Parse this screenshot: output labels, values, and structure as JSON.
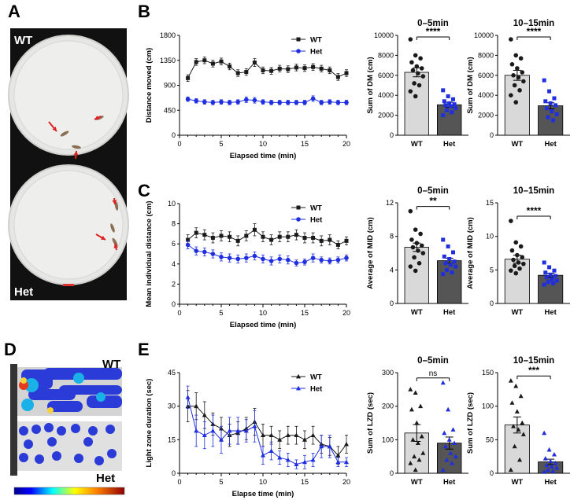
{
  "panels": {
    "A": "A",
    "B": "B",
    "C": "C",
    "D": "D",
    "E": "E"
  },
  "photo": {
    "label_top": "WT",
    "label_bottom": "Het"
  },
  "heatmap": {
    "label_top": "WT",
    "label_bottom": "Het"
  },
  "colors": {
    "wt": "#1a1a1a",
    "het": "#1f2ee0",
    "bar_wt": "#d9d9d9",
    "bar_het": "#555555"
  },
  "chart_data": [
    {
      "id": "B-line",
      "type": "line",
      "xlabel": "Elapsed time (min)",
      "ylabel": "Distance moved (cm)",
      "xlim": [
        0,
        20
      ],
      "ylim": [
        0,
        1800
      ],
      "xticks": [
        0,
        5,
        10,
        15,
        20
      ],
      "yticks": [
        0,
        450,
        900,
        1350,
        1800
      ],
      "yticklabels": [
        "0",
        "450",
        "900",
        "1350",
        "1800"
      ],
      "legend": "top-right",
      "x": [
        1,
        2,
        3,
        4,
        5,
        6,
        7,
        8,
        9,
        10,
        11,
        12,
        13,
        14,
        15,
        16,
        17,
        18,
        19,
        20
      ],
      "series": [
        {
          "name": "WT",
          "color": "#1a1a1a",
          "marker": "square",
          "values": [
            1030,
            1320,
            1350,
            1290,
            1330,
            1240,
            1120,
            1140,
            1310,
            1170,
            1160,
            1200,
            1190,
            1220,
            1210,
            1230,
            1200,
            1170,
            1050,
            1120
          ],
          "err": [
            60,
            60,
            60,
            60,
            60,
            60,
            60,
            60,
            70,
            60,
            60,
            60,
            60,
            60,
            60,
            60,
            60,
            60,
            60,
            60
          ]
        },
        {
          "name": "Het",
          "color": "#1f2ee0",
          "marker": "circle",
          "values": [
            650,
            620,
            600,
            590,
            600,
            590,
            600,
            640,
            630,
            600,
            590,
            590,
            590,
            590,
            590,
            660,
            590,
            600,
            590,
            590
          ],
          "err": [
            40,
            40,
            40,
            40,
            40,
            40,
            40,
            50,
            50,
            40,
            40,
            40,
            40,
            40,
            40,
            50,
            40,
            40,
            40,
            40
          ]
        }
      ]
    },
    {
      "id": "B-bar1",
      "type": "bar",
      "title": "0–5min",
      "ylabel": "Sum of DM (cm)",
      "ylim": [
        0,
        10000
      ],
      "yticks": [
        0,
        2000,
        4000,
        6000,
        8000,
        10000
      ],
      "categories": [
        "WT",
        "Het"
      ],
      "values": [
        6300,
        3050
      ],
      "err": [
        450,
        250
      ],
      "points": [
        [
          9600,
          8000,
          7700,
          7300,
          6900,
          6700,
          6500,
          6200,
          5900,
          5200,
          5000,
          4400,
          3900
        ],
        [
          4500,
          3900,
          3600,
          3400,
          3200,
          3100,
          3000,
          2900,
          2700,
          2500,
          2300,
          2000
        ]
      ],
      "significance": "****"
    },
    {
      "id": "B-bar2",
      "type": "bar",
      "title": "10–15min",
      "ylabel": "Sum of DM (cm)",
      "ylim": [
        0,
        10000
      ],
      "yticks": [
        0,
        2000,
        4000,
        6000,
        8000,
        10000
      ],
      "categories": [
        "WT",
        "Het"
      ],
      "values": [
        6000,
        2950
      ],
      "err": [
        500,
        300
      ],
      "points": [
        [
          9600,
          8000,
          7700,
          7100,
          6700,
          6300,
          6000,
          5800,
          5400,
          5000,
          4500,
          4000,
          3300
        ],
        [
          5500,
          4400,
          3700,
          3400,
          3200,
          3000,
          2700,
          2400,
          2100,
          1800,
          1500
        ]
      ],
      "significance": "****"
    },
    {
      "id": "C-line",
      "type": "line",
      "xlabel": "Elapsed time (min)",
      "ylabel": "Mean individual distance (cm)",
      "xlim": [
        0,
        20
      ],
      "ylim": [
        0,
        10
      ],
      "xticks": [
        0,
        5,
        10,
        15,
        20
      ],
      "yticks": [
        0,
        2,
        4,
        6,
        8,
        10
      ],
      "yticklabels": [
        "0",
        "2",
        "4",
        "6",
        "8",
        "10"
      ],
      "legend": "top-right",
      "x": [
        1,
        2,
        3,
        4,
        5,
        6,
        7,
        8,
        9,
        10,
        11,
        12,
        13,
        14,
        15,
        16,
        17,
        18,
        19,
        20
      ],
      "series": [
        {
          "name": "WT",
          "color": "#1a1a1a",
          "marker": "square",
          "values": [
            6.4,
            7.1,
            6.9,
            6.6,
            6.8,
            6.7,
            6.3,
            6.8,
            7.4,
            6.7,
            6.4,
            6.7,
            6.7,
            6.9,
            6.6,
            6.6,
            6.3,
            6.4,
            5.9,
            6.3
          ],
          "err": [
            0.5,
            0.5,
            0.5,
            0.5,
            0.5,
            0.5,
            0.5,
            0.5,
            0.6,
            0.5,
            0.5,
            0.5,
            0.5,
            0.5,
            0.5,
            0.5,
            0.5,
            0.5,
            0.4,
            0.4
          ]
        },
        {
          "name": "Het",
          "color": "#1f2ee0",
          "marker": "circle",
          "values": [
            5.9,
            5.3,
            5.2,
            5.0,
            4.7,
            4.6,
            4.5,
            4.6,
            4.8,
            4.5,
            4.3,
            4.5,
            4.4,
            4.1,
            4.2,
            4.6,
            4.4,
            4.3,
            4.4,
            4.6
          ],
          "err": [
            0.4,
            0.4,
            0.4,
            0.4,
            0.4,
            0.4,
            0.4,
            0.4,
            0.4,
            0.4,
            0.4,
            0.4,
            0.4,
            0.3,
            0.3,
            0.4,
            0.3,
            0.3,
            0.3,
            0.3
          ]
        }
      ]
    },
    {
      "id": "C-bar1",
      "type": "bar",
      "title": "0–5min",
      "ylabel": "Average of MID (cm)",
      "ylim": [
        0,
        12
      ],
      "yticks": [
        0,
        4,
        8,
        12
      ],
      "categories": [
        "WT",
        "Het"
      ],
      "values": [
        6.7,
        5.1
      ],
      "err": [
        0.5,
        0.3
      ],
      "points": [
        [
          11.0,
          8.8,
          8.3,
          7.6,
          7.2,
          6.9,
          6.7,
          6.3,
          6.0,
          5.5,
          4.8,
          4.4,
          3.9
        ],
        [
          7.6,
          6.8,
          6.1,
          5.6,
          5.3,
          5.0,
          4.8,
          4.6,
          4.4,
          4.0,
          3.7,
          3.5
        ]
      ],
      "significance": "**"
    },
    {
      "id": "C-bar2",
      "type": "bar",
      "title": "10–15min",
      "ylabel": "Average of MID (cm)",
      "ylim": [
        0,
        15
      ],
      "yticks": [
        0,
        5,
        10,
        15
      ],
      "categories": [
        "WT",
        "Het"
      ],
      "values": [
        6.6,
        4.2
      ],
      "err": [
        0.6,
        0.3
      ],
      "points": [
        [
          12.3,
          9.1,
          8.5,
          7.9,
          7.2,
          6.9,
          6.5,
          6.1,
          5.9,
          5.6,
          5.2,
          4.9,
          4.5
        ],
        [
          6.1,
          5.4,
          4.9,
          4.6,
          4.3,
          4.1,
          3.9,
          3.6,
          3.4,
          3.2,
          3.0,
          2.8
        ]
      ],
      "significance": "****"
    },
    {
      "id": "E-line",
      "type": "line",
      "xlabel": "Elapse time (min)",
      "ylabel": "Light zone duration (sec)",
      "xlim": [
        0,
        20
      ],
      "ylim": [
        0,
        45
      ],
      "xticks": [
        0,
        5,
        10,
        15,
        20
      ],
      "yticks": [
        0,
        15,
        30,
        45
      ],
      "yticklabels": [
        "0",
        "15",
        "30",
        "45"
      ],
      "legend": "top-right",
      "x": [
        1,
        2,
        3,
        4,
        5,
        6,
        7,
        8,
        9,
        10,
        11,
        12,
        13,
        14,
        15,
        16,
        17,
        18,
        19,
        20
      ],
      "series": [
        {
          "name": "WT",
          "color": "#1a1a1a",
          "marker": "triangle",
          "values": [
            30,
            30,
            26,
            22,
            20,
            17,
            18,
            20,
            23,
            17,
            17,
            15,
            17,
            17,
            15,
            17,
            13,
            12,
            8,
            13
          ],
          "err": [
            7,
            6,
            6,
            5,
            5,
            5,
            5,
            5,
            6,
            5,
            4,
            4,
            4,
            4,
            4,
            4,
            4,
            4,
            4,
            4
          ]
        },
        {
          "name": "Het",
          "color": "#1f2ee0",
          "marker": "triangle",
          "values": [
            34,
            19,
            17,
            19,
            15,
            19,
            19,
            19,
            21,
            8,
            10,
            7,
            6,
            4,
            5,
            6,
            12,
            12,
            5,
            5
          ],
          "err": [
            5,
            7,
            6,
            7,
            6,
            6,
            6,
            5,
            7,
            4,
            4,
            3,
            3,
            2,
            3,
            3,
            5,
            5,
            2,
            2
          ]
        }
      ]
    },
    {
      "id": "E-bar1",
      "type": "bar",
      "title": "0–5min",
      "ylabel": "Sum of LZD (sec)",
      "ylim": [
        0,
        300
      ],
      "yticks": [
        0,
        100,
        200,
        300
      ],
      "categories": [
        "WT",
        "Het"
      ],
      "values": [
        120,
        90
      ],
      "err": [
        25,
        18
      ],
      "points": [
        [
          250,
          240,
          200,
          190,
          150,
          110,
          100,
          90,
          60,
          50,
          40,
          30,
          10
        ],
        [
          270,
          190,
          130,
          120,
          100,
          90,
          80,
          60,
          50,
          40,
          30,
          10
        ]
      ],
      "significance": "ns"
    },
    {
      "id": "E-bar2",
      "type": "bar",
      "title": "10–15min",
      "ylabel": "Sum of LZD (sec)",
      "ylim": [
        0,
        150
      ],
      "yticks": [
        0,
        50,
        100,
        150
      ],
      "categories": [
        "WT",
        "Het"
      ],
      "values": [
        72,
        17
      ],
      "err": [
        12,
        4
      ],
      "points": [
        [
          138,
          130,
          115,
          105,
          92,
          75,
          70,
          65,
          58,
          40,
          20,
          5
        ],
        [
          60,
          35,
          28,
          22,
          18,
          15,
          12,
          10,
          8,
          5,
          3,
          2
        ]
      ],
      "significance": "***"
    }
  ]
}
